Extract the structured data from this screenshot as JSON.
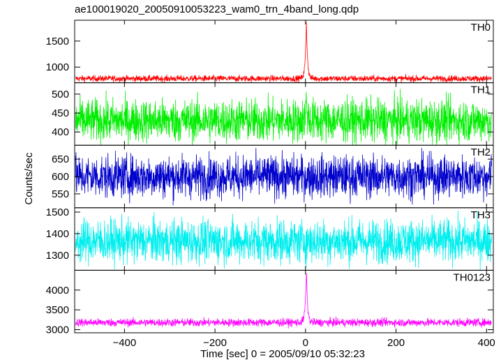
{
  "chart_data": {
    "type": "line",
    "title": "ae100019020_20050910053223_wam0_trn_4band_long.qdp",
    "xlabel": "Time [sec] 0 = 2005/09/10 05:32:23",
    "ylabel": "Counts/sec",
    "xlim": [
      -510,
      415
    ],
    "x_ticks": [
      -400,
      -200,
      0,
      200,
      400
    ],
    "x_tick_labels": [
      "−400",
      "−200",
      "0",
      "200",
      "400"
    ],
    "grid": false,
    "panels": [
      {
        "name": "TH0",
        "color": "#ff0000",
        "ylim": [
          700,
          1900
        ],
        "y_ticks": [
          1000,
          1500
        ],
        "baseline": 780,
        "noise": 30,
        "peak": 1900,
        "peak_time": 2,
        "peak_width": 2.5
      },
      {
        "name": "TH1",
        "color": "#00ee00",
        "ylim": [
          365,
          530
        ],
        "y_ticks": [
          400,
          450,
          500
        ],
        "baseline": 430,
        "noise": 28,
        "peak": 490,
        "peak_time": 2,
        "peak_width": 2
      },
      {
        "name": "TH2",
        "color": "#0000cc",
        "ylim": [
          510,
          690
        ],
        "y_ticks": [
          550,
          600,
          650
        ],
        "baseline": 600,
        "noise": 30,
        "peak": 600,
        "peak_time": 2,
        "peak_width": 2
      },
      {
        "name": "TH3",
        "color": "#00eeee",
        "ylim": [
          1230,
          1520
        ],
        "y_ticks": [
          1300,
          1400,
          1500
        ],
        "baseline": 1365,
        "noise": 50,
        "peak": 1365,
        "peak_time": 2,
        "peak_width": 2
      },
      {
        "name": "TH0123",
        "color": "#ff00ff",
        "ylim": [
          2920,
          4500
        ],
        "y_ticks": [
          3000,
          3500,
          4000
        ],
        "baseline": 3180,
        "noise": 50,
        "peak": 4500,
        "peak_time": 2,
        "peak_width": 2.5
      }
    ],
    "time_step": 0.5
  }
}
